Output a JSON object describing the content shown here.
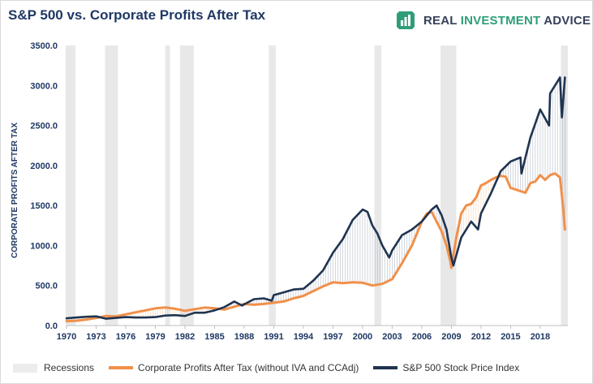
{
  "header": {
    "title": "S&P 500 vs. Corporate Profits After Tax",
    "brand_name_part1": "REAL ",
    "brand_name_part2": "INVESTMENT",
    "brand_name_part3": " ADVICE",
    "brand_icon": "bar-chart-icon"
  },
  "colors": {
    "profits": "#f0904a",
    "sp500": "#1f3450",
    "recession": "#e8e8e8",
    "title": "#1f3864",
    "brand_green": "#2f9e78"
  },
  "chart_data": {
    "type": "line",
    "title": "S&P 500 vs. Corporate Profits After Tax",
    "ylabel": "CORPORATE PROFITS AFTER TAX",
    "xlabel": "",
    "ylim": [
      0,
      3500
    ],
    "xlim": [
      1970,
      2020.8
    ],
    "grid": false,
    "legend_position": "bottom",
    "x_ticks": [
      "1970",
      "1973",
      "1976",
      "1979",
      "1982",
      "1985",
      "1988",
      "1991",
      "1994",
      "1997",
      "2000",
      "2003",
      "2006",
      "2009",
      "2012",
      "2015",
      "2018"
    ],
    "y_ticks": [
      "0.0",
      "500.0",
      "1000.0",
      "1500.0",
      "2000.0",
      "2500.0",
      "3000.0",
      "3500.0"
    ],
    "recessions": [
      [
        1969.9,
        1970.9
      ],
      [
        1973.9,
        1975.2
      ],
      [
        1980.0,
        1980.5
      ],
      [
        1981.5,
        1982.9
      ],
      [
        1990.5,
        1991.2
      ],
      [
        2001.2,
        2001.9
      ],
      [
        2007.9,
        2009.5
      ],
      [
        2020.1,
        2020.8
      ]
    ],
    "legend": [
      {
        "name": "Recessions",
        "kind": "box"
      },
      {
        "name": "Corporate Profits After Tax (without IVA and CCAdj)",
        "kind": "line"
      },
      {
        "name": "S&P 500 Stock Price Index",
        "kind": "line"
      }
    ],
    "series": [
      {
        "name": "Corporate Profits After Tax (without IVA and CCAdj)",
        "x": [
          1970,
          1971,
          1972,
          1973,
          1974,
          1975,
          1976,
          1977,
          1978,
          1979,
          1980,
          1981,
          1982,
          1983,
          1984,
          1985,
          1986,
          1987,
          1988,
          1989,
          1990,
          1991,
          1992,
          1993,
          1994,
          1995,
          1996,
          1997,
          1998,
          1999,
          2000,
          2001,
          2002,
          2003,
          2004,
          2005,
          2006,
          2006.5,
          2007,
          2007.5,
          2008,
          2008.5,
          2008.9,
          2009,
          2009.5,
          2010,
          2010.5,
          2011,
          2011.5,
          2012,
          2012.5,
          2013,
          2013.5,
          2014,
          2014.5,
          2015,
          2015.5,
          2016,
          2016.5,
          2017,
          2017.5,
          2018,
          2018.5,
          2019,
          2019.5,
          2020,
          2020.3,
          2020.5
        ],
        "values": [
          55,
          60,
          75,
          95,
          120,
          115,
          140,
          165,
          190,
          215,
          225,
          210,
          185,
          205,
          225,
          215,
          200,
          235,
          270,
          260,
          270,
          285,
          300,
          340,
          370,
          430,
          490,
          540,
          530,
          540,
          535,
          500,
          520,
          580,
          780,
          1000,
          1300,
          1400,
          1420,
          1300,
          1180,
          1000,
          800,
          720,
          1100,
          1400,
          1500,
          1520,
          1600,
          1750,
          1780,
          1820,
          1850,
          1870,
          1860,
          1720,
          1700,
          1680,
          1660,
          1780,
          1800,
          1880,
          1820,
          1880,
          1900,
          1850,
          1500,
          1200
        ]
      },
      {
        "name": "S&P 500 Stock Price Index",
        "x": [
          1970,
          1971,
          1972,
          1973,
          1974,
          1975,
          1976,
          1977,
          1978,
          1979,
          1980,
          1981,
          1982,
          1983,
          1984,
          1985,
          1986,
          1987,
          1987.8,
          1988,
          1989,
          1990,
          1990.8,
          1991,
          1992,
          1993,
          1994,
          1995,
          1996,
          1997,
          1998,
          1999,
          2000,
          2000.5,
          2001,
          2001.5,
          2002,
          2002.7,
          2003,
          2004,
          2005,
          2006,
          2007,
          2007.5,
          2008,
          2008.5,
          2009,
          2009.2,
          2010,
          2011,
          2011.7,
          2012,
          2013,
          2014,
          2015,
          2016,
          2016.1,
          2017,
          2018,
          2018.9,
          2019,
          2019.5,
          2020,
          2020.2,
          2020.5
        ],
        "values": [
          90,
          100,
          110,
          115,
          85,
          95,
          105,
          100,
          100,
          105,
          125,
          130,
          120,
          160,
          160,
          190,
          230,
          300,
          250,
          265,
          330,
          340,
          310,
          380,
          415,
          450,
          460,
          560,
          690,
          910,
          1080,
          1320,
          1450,
          1420,
          1250,
          1150,
          1000,
          850,
          940,
          1130,
          1200,
          1300,
          1450,
          1500,
          1380,
          1200,
          850,
          750,
          1100,
          1300,
          1200,
          1400,
          1650,
          1930,
          2050,
          2100,
          1900,
          2350,
          2700,
          2500,
          2900,
          3000,
          3100,
          2600,
          3100
        ]
      }
    ]
  }
}
